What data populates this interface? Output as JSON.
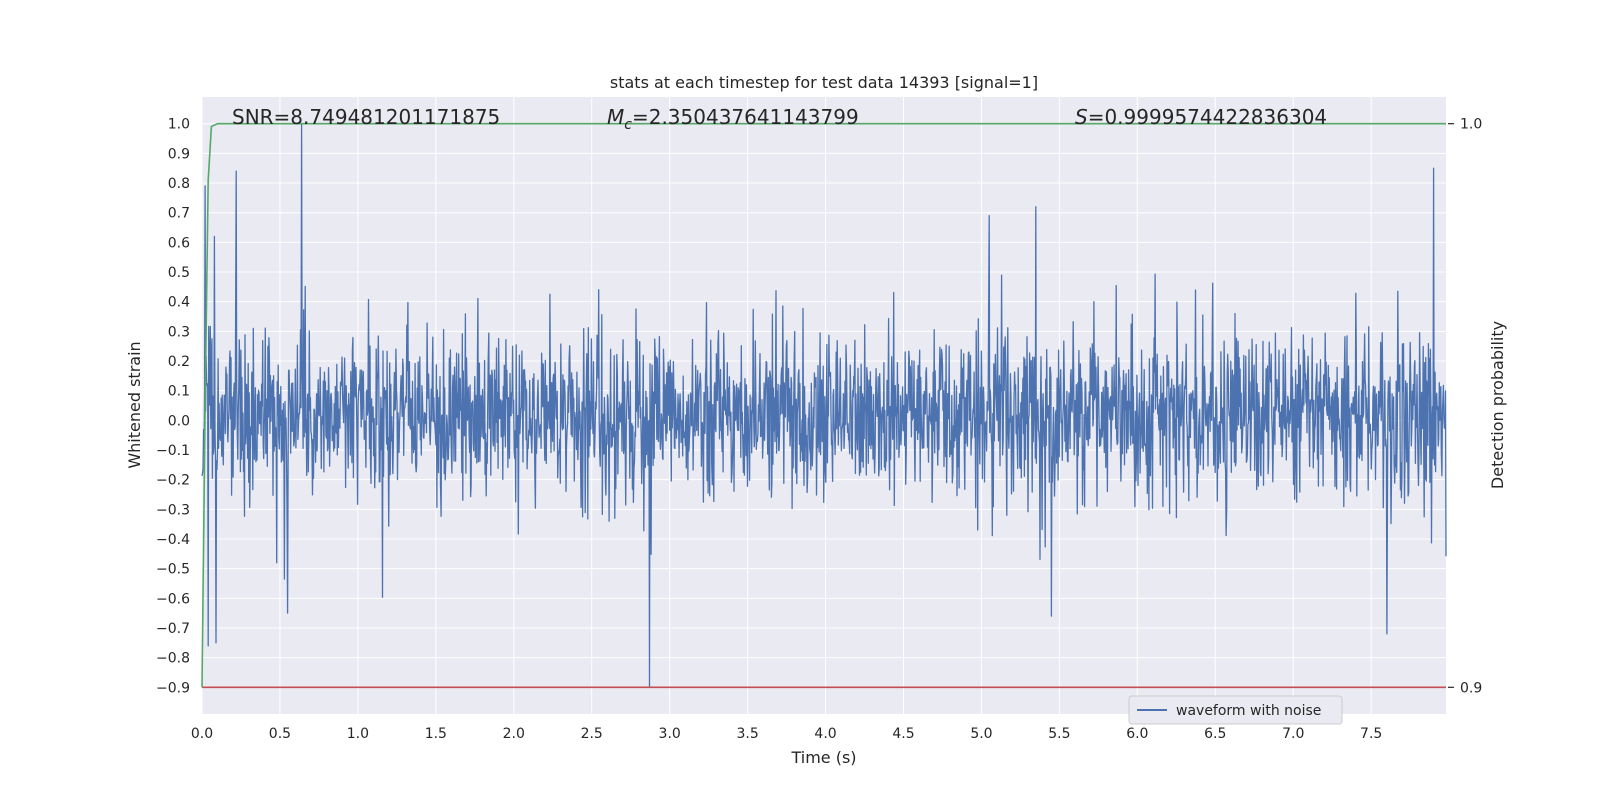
{
  "chart_data": {
    "type": "line",
    "title": "stats at each timestep for test data 14393 [signal=1]",
    "xlabel": "Time (s)",
    "ylabel": "Whitened strain",
    "y2label": "Detection probability",
    "xlim": [
      0.0,
      7.98
    ],
    "ylim": [
      -0.99,
      1.09
    ],
    "y2lim": [
      0.9,
      1.0
    ],
    "x_ticks": [
      "0.0",
      "0.5",
      "1.0",
      "1.5",
      "2.0",
      "2.5",
      "3.0",
      "3.5",
      "4.0",
      "4.5",
      "5.0",
      "5.5",
      "6.0",
      "6.5",
      "7.0",
      "7.5"
    ],
    "y_ticks": [
      "1.0",
      "0.9",
      "0.8",
      "0.7",
      "0.6",
      "0.5",
      "0.4",
      "0.3",
      "0.2",
      "0.1",
      "0.0",
      "−0.1",
      "−0.2",
      "−0.3",
      "−0.4",
      "−0.5",
      "−0.6",
      "−0.7",
      "−0.8",
      "−0.9"
    ],
    "y2_ticks": [
      "1.0",
      "0.9"
    ],
    "grid": true,
    "legend_position": "lower-right",
    "annotations": {
      "snr": "SNR=8.749481201171875",
      "mc_symbol": "M",
      "mc_sub": "c",
      "mc_value": "=2.350437641143799",
      "s_symbol": "S",
      "s_value": "=0.9999574422836304"
    },
    "series": [
      {
        "name": "waveform with noise",
        "color": "#4c72b0",
        "description_range": "dense noise, mostly within -0.4 to 0.5",
        "peaks": [
          {
            "x": 0.02,
            "y": 0.79
          },
          {
            "x": 0.04,
            "y": -0.76
          },
          {
            "x": 0.08,
            "y": 0.62
          },
          {
            "x": 0.09,
            "y": -0.75
          },
          {
            "x": 0.22,
            "y": 0.84
          },
          {
            "x": 0.55,
            "y": -0.65
          },
          {
            "x": 0.64,
            "y": 1.0
          },
          {
            "x": 2.87,
            "y": -0.9
          },
          {
            "x": 5.05,
            "y": 0.69
          },
          {
            "x": 5.35,
            "y": 0.72
          },
          {
            "x": 5.45,
            "y": -0.66
          },
          {
            "x": 7.6,
            "y": -0.72
          },
          {
            "x": 7.9,
            "y": 0.85
          }
        ]
      },
      {
        "color": "#55a868",
        "axis": "right",
        "x": [
          0.0,
          0.02,
          0.04,
          0.06,
          0.1,
          0.2,
          7.98
        ],
        "y": [
          0.9,
          0.95,
          0.99,
          0.9995,
          1.0,
          1.0,
          1.0
        ]
      },
      {
        "color": "#c44e52",
        "axis": "right",
        "x": [
          0.0,
          7.98
        ],
        "y": [
          0.9,
          0.9
        ]
      }
    ]
  }
}
